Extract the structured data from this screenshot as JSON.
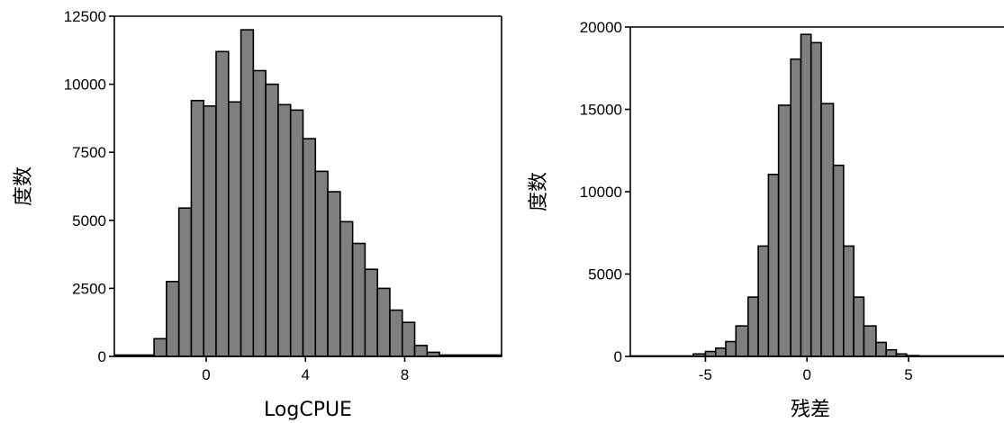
{
  "chart_data": [
    {
      "type": "bar",
      "subtype": "histogram",
      "xlabel": "LogCPUE",
      "ylabel": "度数",
      "xlim": [
        -3.7,
        11.9
      ],
      "ylim": [
        0,
        12500
      ],
      "xticks": [
        0,
        4,
        8
      ],
      "yticks": [
        0,
        2500,
        5000,
        7500,
        10000,
        12500
      ],
      "bin_edges": [
        -3.7,
        -2.1,
        -1.6,
        -1.1,
        -0.6,
        -0.1,
        0.4,
        0.9,
        1.4,
        1.9,
        2.4,
        2.9,
        3.4,
        3.9,
        4.4,
        4.9,
        5.4,
        5.9,
        6.4,
        6.9,
        7.4,
        7.9,
        8.4,
        8.9,
        9.4,
        11.9
      ],
      "values": [
        50,
        650,
        2750,
        5450,
        9400,
        9200,
        11200,
        9350,
        12000,
        10500,
        10000,
        9250,
        9050,
        8000,
        6800,
        6050,
        4950,
        4150,
        3200,
        2500,
        1700,
        1250,
        400,
        150,
        50
      ],
      "bar_color": "#7f7f7f",
      "grid": false
    },
    {
      "type": "bar",
      "subtype": "histogram",
      "xlabel": "残差",
      "ylabel": "度数",
      "xlim": [
        -8.7,
        9.7
      ],
      "ylim": [
        0,
        20000
      ],
      "xticks": [
        -5,
        0,
        5
      ],
      "yticks": [
        0,
        5000,
        10000,
        15000,
        20000
      ],
      "bin_edges": [
        -8.7,
        -5.6,
        -5.0,
        -4.5,
        -4.0,
        -3.5,
        -2.9,
        -2.4,
        -1.9,
        -1.4,
        -0.8,
        -0.3,
        0.2,
        0.7,
        1.3,
        1.8,
        2.3,
        2.8,
        3.4,
        3.9,
        4.4,
        4.9,
        5.5,
        9.7
      ],
      "values": [
        30,
        150,
        300,
        500,
        900,
        1850,
        3600,
        6700,
        11050,
        15250,
        18050,
        19550,
        19050,
        15350,
        11600,
        6700,
        3600,
        1850,
        850,
        400,
        150,
        50,
        30
      ],
      "bar_color": "#7f7f7f",
      "grid": false
    }
  ]
}
